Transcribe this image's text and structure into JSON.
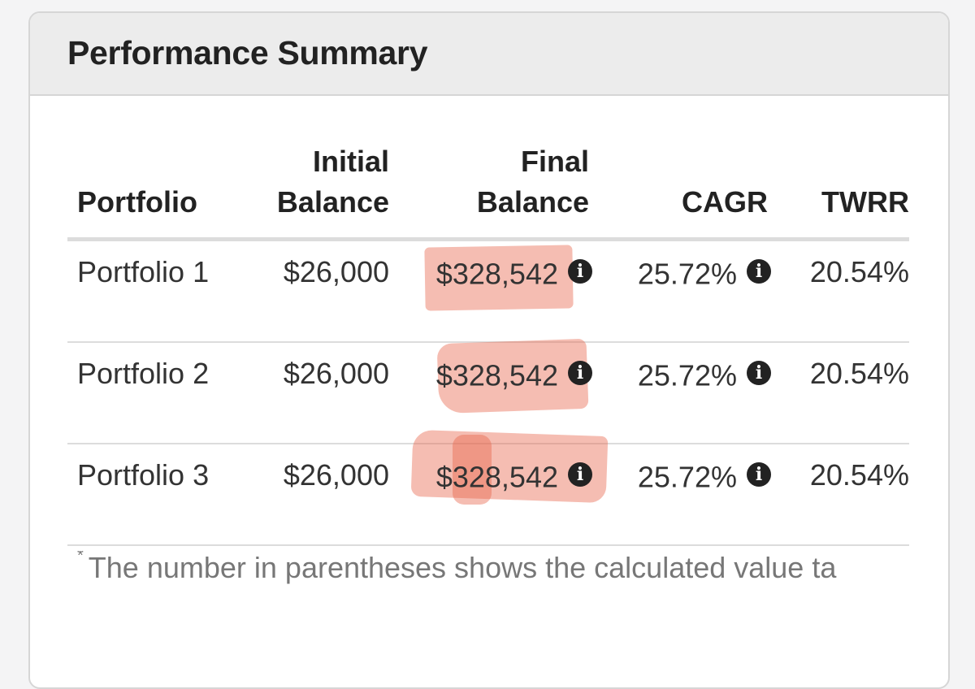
{
  "panel": {
    "title": "Performance Summary"
  },
  "table": {
    "headers": {
      "portfolio": "Portfolio",
      "initial_line1": "Initial",
      "initial_line2": "Balance",
      "final_line1": "Final",
      "final_line2": "Balance",
      "cagr": "CAGR",
      "twrr": "TWRR"
    },
    "rows": [
      {
        "portfolio": "Portfolio 1",
        "initial": "$26,000",
        "final": "$328,542",
        "cagr": "25.72%",
        "twrr": "20.54%"
      },
      {
        "portfolio": "Portfolio 2",
        "initial": "$26,000",
        "final": "$328,542",
        "cagr": "25.72%",
        "twrr": "20.54%"
      },
      {
        "portfolio": "Portfolio 3",
        "initial": "$26,000",
        "final": "$328,542",
        "cagr": "25.72%",
        "twrr": "20.54%"
      }
    ]
  },
  "footnote": {
    "marker": "*",
    "text": "The number in parentheses shows the calculated value ta"
  },
  "icons": {
    "info": "info-circle-icon"
  },
  "colors": {
    "highlight": "#e86248"
  }
}
